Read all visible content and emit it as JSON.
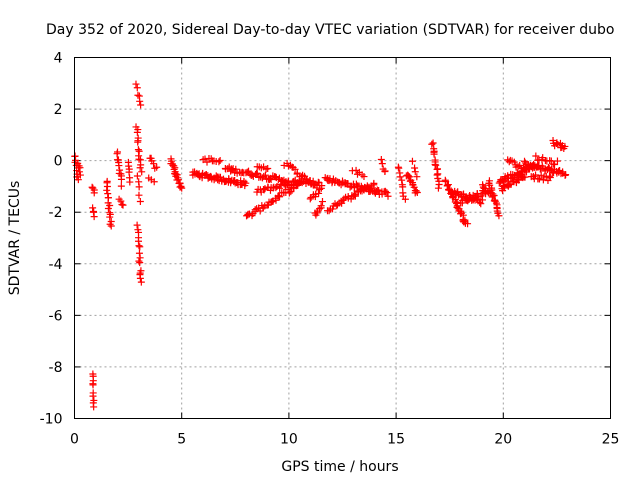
{
  "chart_data": {
    "type": "scatter",
    "title": "Day 352 of 2020, Sidereal Day-to-day VTEC variation (SDTVAR) for receiver dubo",
    "xlabel": "GPS time / hours",
    "ylabel": "SDTVAR / TECUs",
    "xlim": [
      0,
      25
    ],
    "ylim": [
      -10,
      4
    ],
    "xticks": [
      0,
      5,
      10,
      15,
      20,
      25
    ],
    "yticks": [
      -10,
      -8,
      -6,
      -4,
      -2,
      0,
      2,
      4
    ],
    "grid": true,
    "marker": "+",
    "color": "#ff0000",
    "series": [
      {
        "name": "SDTVAR",
        "segments": [
          {
            "x0": 0.0,
            "x1": 0.15,
            "y0": 0.2,
            "y1": -0.8,
            "n": 10
          },
          {
            "x0": 0.18,
            "x1": 0.25,
            "y0": -0.1,
            "y1": -0.5,
            "n": 6
          },
          {
            "x0": 0.85,
            "x1": 0.9,
            "y0": -1.0,
            "y1": -1.2,
            "n": 4
          },
          {
            "x0": 0.85,
            "x1": 0.9,
            "y0": -1.9,
            "y1": -2.1,
            "n": 4
          },
          {
            "x0": 0.85,
            "x1": 0.9,
            "y0": -8.2,
            "y1": -9.5,
            "n": 10
          },
          {
            "x0": 1.5,
            "x1": 1.7,
            "y0": -0.8,
            "y1": -2.6,
            "n": 16
          },
          {
            "x0": 2.0,
            "x1": 2.2,
            "y0": 0.3,
            "y1": -0.9,
            "n": 12
          },
          {
            "x0": 2.1,
            "x1": 2.25,
            "y0": -1.5,
            "y1": -1.8,
            "n": 4
          },
          {
            "x0": 2.5,
            "x1": 2.6,
            "y0": 0.0,
            "y1": -0.8,
            "n": 6
          },
          {
            "x0": 2.9,
            "x1": 3.1,
            "y0": 1.3,
            "y1": -0.4,
            "n": 14
          },
          {
            "x0": 2.9,
            "x1": 3.1,
            "y0": 2.9,
            "y1": 2.1,
            "n": 6
          },
          {
            "x0": 2.95,
            "x1": 3.05,
            "y0": -0.6,
            "y1": -1.5,
            "n": 5
          },
          {
            "x0": 2.95,
            "x1": 3.1,
            "y0": -2.5,
            "y1": -4.8,
            "n": 16
          },
          {
            "x0": 3.5,
            "x1": 3.8,
            "y0": 0.1,
            "y1": -0.3,
            "n": 6
          },
          {
            "x0": 3.5,
            "x1": 3.7,
            "y0": -0.7,
            "y1": -0.9,
            "n": 3
          },
          {
            "x0": 4.5,
            "x1": 5.0,
            "y0": 0.0,
            "y1": -1.1,
            "n": 24
          },
          {
            "x0": 5.5,
            "x1": 8.0,
            "y0": -0.5,
            "y1": -0.9,
            "n": 60
          },
          {
            "x0": 6.0,
            "x1": 6.8,
            "y0": 0.05,
            "y1": -0.05,
            "n": 10
          },
          {
            "x0": 7.0,
            "x1": 10.0,
            "y0": -0.3,
            "y1": -0.8,
            "n": 50
          },
          {
            "x0": 8.0,
            "x1": 10.5,
            "y0": -2.2,
            "y1": -0.9,
            "n": 40
          },
          {
            "x0": 8.5,
            "x1": 10.5,
            "y0": -1.2,
            "y1": -0.8,
            "n": 30
          },
          {
            "x0": 8.5,
            "x1": 9.0,
            "y0": -0.2,
            "y1": -0.3,
            "n": 6
          },
          {
            "x0": 9.8,
            "x1": 11.3,
            "y0": -0.1,
            "y1": -1.0,
            "n": 20
          },
          {
            "x0": 10.5,
            "x1": 11.5,
            "y0": -0.8,
            "y1": -0.9,
            "n": 16
          },
          {
            "x0": 11.0,
            "x1": 11.5,
            "y0": -1.5,
            "y1": -1.1,
            "n": 8
          },
          {
            "x0": 11.2,
            "x1": 11.6,
            "y0": -2.1,
            "y1": -1.6,
            "n": 8
          },
          {
            "x0": 11.7,
            "x1": 14.6,
            "y0": -0.7,
            "y1": -1.3,
            "n": 60
          },
          {
            "x0": 11.8,
            "x1": 14.0,
            "y0": -1.9,
            "y1": -0.9,
            "n": 34
          },
          {
            "x0": 13.0,
            "x1": 13.5,
            "y0": -0.4,
            "y1": -0.6,
            "n": 6
          },
          {
            "x0": 14.3,
            "x1": 14.5,
            "y0": 0.0,
            "y1": -0.5,
            "n": 5
          },
          {
            "x0": 15.1,
            "x1": 15.4,
            "y0": -0.2,
            "y1": -1.5,
            "n": 10
          },
          {
            "x0": 15.5,
            "x1": 16.0,
            "y0": -0.5,
            "y1": -1.3,
            "n": 14
          },
          {
            "x0": 15.8,
            "x1": 16.0,
            "y0": -0.1,
            "y1": -0.6,
            "n": 4
          },
          {
            "x0": 16.7,
            "x1": 17.0,
            "y0": 0.7,
            "y1": -1.0,
            "n": 18
          },
          {
            "x0": 17.3,
            "x1": 18.3,
            "y0": -0.8,
            "y1": -2.5,
            "n": 36
          },
          {
            "x0": 17.6,
            "x1": 19.0,
            "y0": -1.2,
            "y1": -1.6,
            "n": 30
          },
          {
            "x0": 18.0,
            "x1": 19.2,
            "y0": -1.6,
            "y1": -1.2,
            "n": 20
          },
          {
            "x0": 19.0,
            "x1": 19.5,
            "y0": -1.0,
            "y1": -1.3,
            "n": 10
          },
          {
            "x0": 19.3,
            "x1": 19.8,
            "y0": -0.8,
            "y1": -2.1,
            "n": 20
          },
          {
            "x0": 19.8,
            "x1": 21.5,
            "y0": -0.8,
            "y1": -0.2,
            "n": 44
          },
          {
            "x0": 19.9,
            "x1": 21.0,
            "y0": -1.1,
            "y1": -0.6,
            "n": 24
          },
          {
            "x0": 20.2,
            "x1": 21.0,
            "y0": 0.0,
            "y1": -0.3,
            "n": 12
          },
          {
            "x0": 21.0,
            "x1": 22.9,
            "y0": -0.1,
            "y1": -0.5,
            "n": 40
          },
          {
            "x0": 21.3,
            "x1": 22.2,
            "y0": -0.6,
            "y1": -0.7,
            "n": 14
          },
          {
            "x0": 21.5,
            "x1": 22.5,
            "y0": 0.1,
            "y1": -0.1,
            "n": 12
          },
          {
            "x0": 22.3,
            "x1": 22.9,
            "y0": 0.7,
            "y1": 0.5,
            "n": 12
          }
        ]
      }
    ]
  }
}
